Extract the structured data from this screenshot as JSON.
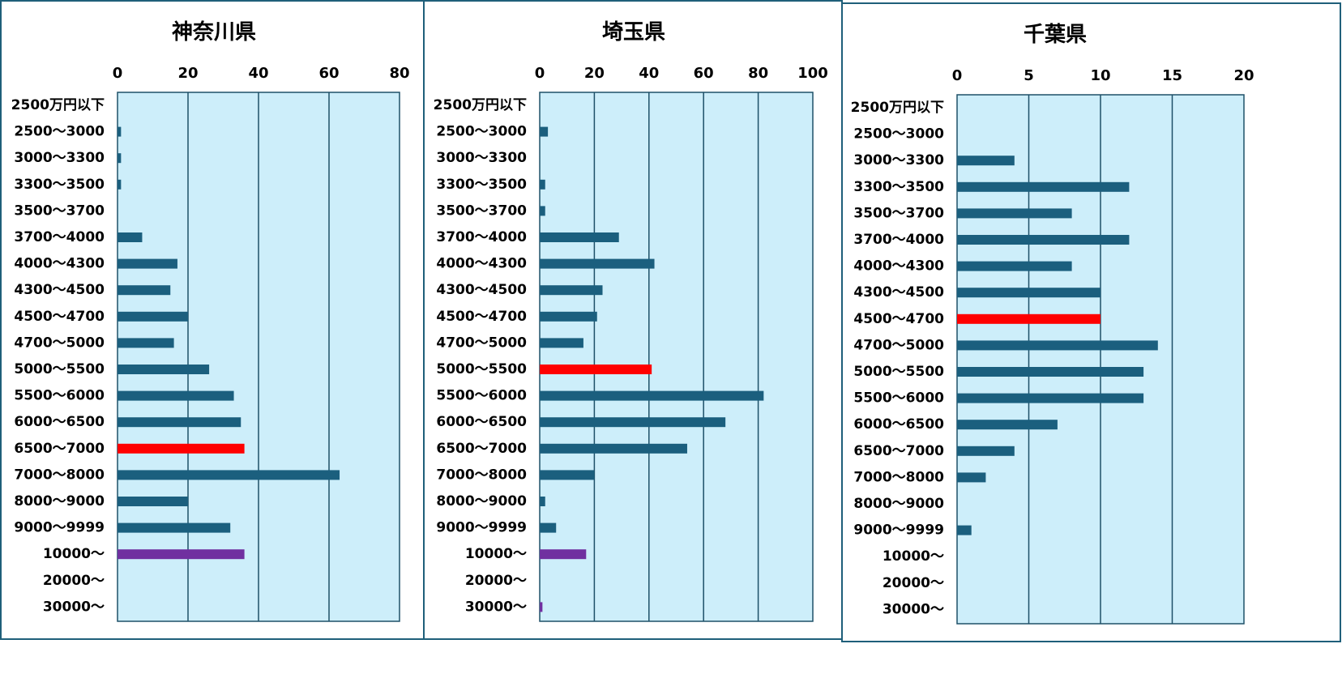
{
  "chart_data": [
    {
      "type": "bar",
      "title": "神奈川県",
      "xlim": [
        0,
        80
      ],
      "xticks": [
        "0",
        "20",
        "40",
        "60",
        "80"
      ],
      "grid": true,
      "categories": [
        "2500万円以下",
        "2500～3000",
        "3000～3300",
        "3300～3500",
        "3500～3700",
        "3700～4000",
        "4000～4300",
        "4300～4500",
        "4500～4700",
        "4700～5000",
        "5000～5500",
        "5500～6000",
        "6000～6500",
        "6500～7000",
        "7000～8000",
        "8000～9000",
        "9000～9999",
        "10000～",
        "20000～",
        "30000～"
      ],
      "values": [
        0,
        1,
        1,
        1,
        0,
        7,
        17,
        15,
        20,
        16,
        26,
        33,
        35,
        36,
        63,
        20,
        32,
        36,
        0,
        0
      ],
      "bar_colors": [
        "#1b5f7e",
        "#1b5f7e",
        "#1b5f7e",
        "#1b5f7e",
        "#1b5f7e",
        "#1b5f7e",
        "#1b5f7e",
        "#1b5f7e",
        "#1b5f7e",
        "#1b5f7e",
        "#1b5f7e",
        "#1b5f7e",
        "#1b5f7e",
        "#ff0000",
        "#1b5f7e",
        "#1b5f7e",
        "#1b5f7e",
        "#7030a0",
        "#7030a0",
        "#7030a0"
      ]
    },
    {
      "type": "bar",
      "title": "埼玉県",
      "xlim": [
        0,
        100
      ],
      "xticks": [
        "0",
        "20",
        "40",
        "60",
        "80",
        "100"
      ],
      "grid": true,
      "categories": [
        "2500万円以下",
        "2500～3000",
        "3000～3300",
        "3300～3500",
        "3500～3700",
        "3700～4000",
        "4000～4300",
        "4300～4500",
        "4500～4700",
        "4700～5000",
        "5000～5500",
        "5500～6000",
        "6000～6500",
        "6500～7000",
        "7000～8000",
        "8000～9000",
        "9000～9999",
        "10000～",
        "20000～",
        "30000～"
      ],
      "values": [
        0,
        3,
        0,
        2,
        2,
        29,
        42,
        23,
        21,
        16,
        41,
        82,
        68,
        54,
        20,
        2,
        6,
        17,
        0,
        1
      ],
      "bar_colors": [
        "#1b5f7e",
        "#1b5f7e",
        "#1b5f7e",
        "#1b5f7e",
        "#1b5f7e",
        "#1b5f7e",
        "#1b5f7e",
        "#1b5f7e",
        "#1b5f7e",
        "#1b5f7e",
        "#ff0000",
        "#1b5f7e",
        "#1b5f7e",
        "#1b5f7e",
        "#1b5f7e",
        "#1b5f7e",
        "#1b5f7e",
        "#7030a0",
        "#7030a0",
        "#7030a0"
      ]
    },
    {
      "type": "bar",
      "title": "千葉県",
      "xlim": [
        0,
        20
      ],
      "xticks": [
        "0",
        "5",
        "10",
        "15",
        "20"
      ],
      "grid": true,
      "categories": [
        "2500万円以下",
        "2500～3000",
        "3000～3300",
        "3300～3500",
        "3500～3700",
        "3700～4000",
        "4000～4300",
        "4300～4500",
        "4500～4700",
        "4700～5000",
        "5000～5500",
        "5500～6000",
        "6000～6500",
        "6500～7000",
        "7000～8000",
        "8000～9000",
        "9000～9999",
        "10000～",
        "20000～",
        "30000～"
      ],
      "values": [
        0,
        0,
        4,
        12,
        8,
        12,
        8,
        10,
        10,
        14,
        13,
        13,
        7,
        4,
        2,
        0,
        1,
        0,
        0,
        0
      ],
      "bar_colors": [
        "#1b5f7e",
        "#1b5f7e",
        "#1b5f7e",
        "#1b5f7e",
        "#1b5f7e",
        "#1b5f7e",
        "#1b5f7e",
        "#1b5f7e",
        "#ff0000",
        "#1b5f7e",
        "#1b5f7e",
        "#1b5f7e",
        "#1b5f7e",
        "#1b5f7e",
        "#1b5f7e",
        "#1b5f7e",
        "#1b5f7e",
        "#1b5f7e",
        "#1b5f7e",
        "#1b5f7e"
      ]
    }
  ],
  "colors": {
    "plot_bg": "#cdeefa",
    "grid": "#1e5068",
    "panel_border": "#1f5f7a"
  }
}
